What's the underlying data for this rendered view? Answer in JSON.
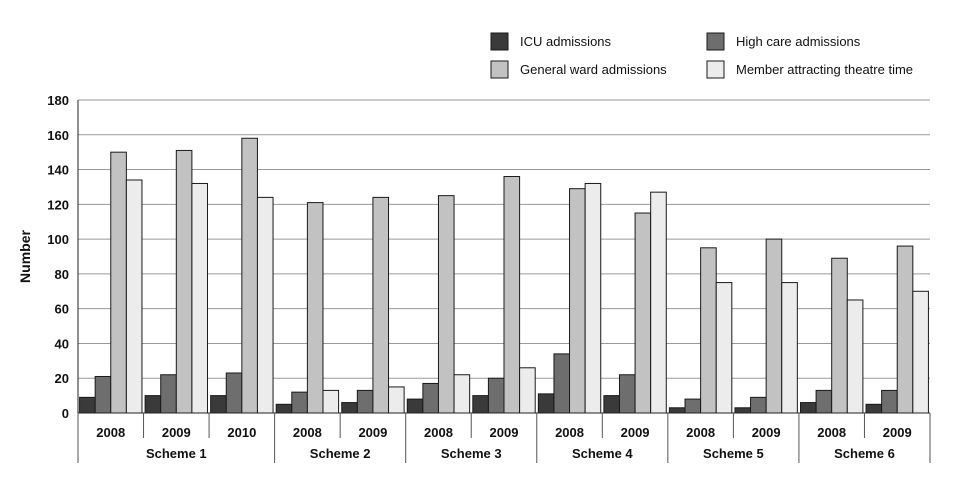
{
  "chart_data": {
    "type": "bar",
    "title": "",
    "xlabel": "",
    "ylabel": "Number",
    "ylim": [
      0,
      180
    ],
    "y_ticks": [
      0,
      20,
      40,
      60,
      80,
      100,
      120,
      140,
      160,
      180
    ],
    "grid": true,
    "legend_position": "top-right",
    "groups": [
      {
        "name": "Scheme 1",
        "years": [
          "2008",
          "2009",
          "2010"
        ]
      },
      {
        "name": "Scheme 2",
        "years": [
          "2008",
          "2009"
        ]
      },
      {
        "name": "Scheme 3",
        "years": [
          "2008",
          "2009"
        ]
      },
      {
        "name": "Scheme 4",
        "years": [
          "2008",
          "2009"
        ]
      },
      {
        "name": "Scheme 5",
        "years": [
          "2008",
          "2009"
        ]
      },
      {
        "name": "Scheme 6",
        "years": [
          "2008",
          "2009"
        ]
      }
    ],
    "series": [
      {
        "name": "ICU admissions",
        "color": "#3a3a3a",
        "values": [
          9,
          10,
          10,
          5,
          6,
          8,
          10,
          11,
          10,
          3,
          3,
          6,
          5
        ]
      },
      {
        "name": "High care admissions",
        "color": "#6e6e6e",
        "values": [
          21,
          22,
          23,
          12,
          13,
          17,
          20,
          34,
          22,
          8,
          9,
          13,
          13
        ]
      },
      {
        "name": "General ward admissions",
        "color": "#c2c2c2",
        "values": [
          150,
          151,
          158,
          121,
          124,
          125,
          136,
          129,
          115,
          95,
          100,
          89,
          96
        ]
      },
      {
        "name": "Member attracting theatre time",
        "color": "#ececec",
        "values": [
          134,
          132,
          124,
          13,
          15,
          22,
          26,
          132,
          127,
          75,
          75,
          65,
          70
        ]
      }
    ]
  }
}
